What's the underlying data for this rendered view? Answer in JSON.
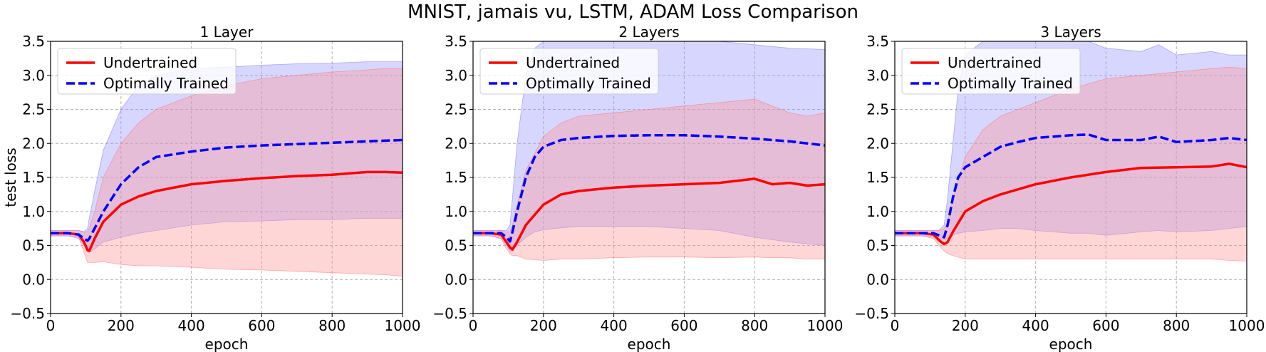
{
  "figure_title": "MNIST, jamais vu, LSTM, ADAM Loss Comparison",
  "colors": {
    "undertrained": "#ff0000",
    "optimal": "#0000ff",
    "undertrained_band": "#ff9999",
    "optimal_band": "#9999ff",
    "grid": "#b0b0b0"
  },
  "chart_data": [
    {
      "type": "line",
      "title": "1 Layer",
      "xlabel": "epoch",
      "ylabel": "test loss",
      "xlim": [
        0,
        1000
      ],
      "ylim": [
        -0.5,
        3.5
      ],
      "xticks": [
        0,
        200,
        400,
        600,
        800,
        1000
      ],
      "yticks": [
        -0.5,
        0.0,
        0.5,
        1.0,
        1.5,
        2.0,
        2.5,
        3.0,
        3.5
      ],
      "grid": true,
      "legend_position": "upper-left",
      "series": [
        {
          "name": "Undertrained",
          "style": "solid",
          "x": [
            0,
            50,
            80,
            95,
            105,
            110,
            125,
            150,
            200,
            250,
            300,
            400,
            500,
            600,
            700,
            800,
            900,
            950,
            1000
          ],
          "mean": [
            0.68,
            0.68,
            0.66,
            0.55,
            0.43,
            0.42,
            0.6,
            0.85,
            1.1,
            1.22,
            1.3,
            1.4,
            1.45,
            1.49,
            1.52,
            1.54,
            1.58,
            1.58,
            1.57
          ],
          "upper": [
            0.72,
            0.72,
            0.72,
            0.7,
            0.7,
            0.75,
            1.0,
            1.5,
            2.0,
            2.3,
            2.5,
            2.7,
            2.85,
            2.95,
            3.0,
            3.05,
            3.08,
            3.1,
            3.1
          ],
          "lower": [
            0.64,
            0.64,
            0.62,
            0.4,
            0.25,
            0.25,
            0.25,
            0.26,
            0.22,
            0.2,
            0.2,
            0.18,
            0.15,
            0.14,
            0.12,
            0.1,
            0.08,
            0.07,
            0.05
          ]
        },
        {
          "name": "Optimally Trained",
          "style": "dashed",
          "x": [
            0,
            50,
            80,
            95,
            105,
            110,
            125,
            150,
            200,
            250,
            300,
            400,
            500,
            600,
            700,
            800,
            900,
            950,
            1000
          ],
          "mean": [
            0.68,
            0.68,
            0.66,
            0.6,
            0.57,
            0.6,
            0.75,
            1.0,
            1.4,
            1.65,
            1.8,
            1.88,
            1.94,
            1.97,
            1.99,
            2.01,
            2.03,
            2.04,
            2.05
          ],
          "upper": [
            0.72,
            0.72,
            0.72,
            0.7,
            0.75,
            0.9,
            1.3,
            1.9,
            2.5,
            2.85,
            3.0,
            3.1,
            3.12,
            3.15,
            3.17,
            3.18,
            3.2,
            3.2,
            3.2
          ],
          "lower": [
            0.64,
            0.64,
            0.6,
            0.5,
            0.45,
            0.4,
            0.45,
            0.55,
            0.62,
            0.68,
            0.72,
            0.8,
            0.85,
            0.86,
            0.88,
            0.88,
            0.9,
            0.9,
            0.9
          ]
        }
      ]
    },
    {
      "type": "line",
      "title": "2 Layers",
      "xlabel": "epoch",
      "ylabel": "",
      "xlim": [
        0,
        1000
      ],
      "ylim": [
        -0.5,
        3.5
      ],
      "xticks": [
        0,
        200,
        400,
        600,
        800,
        1000
      ],
      "yticks": [
        -0.5,
        0.0,
        0.5,
        1.0,
        1.5,
        2.0,
        2.5,
        3.0,
        3.5
      ],
      "grid": true,
      "legend_position": "upper-left",
      "series": [
        {
          "name": "Undertrained",
          "style": "solid",
          "x": [
            0,
            50,
            80,
            95,
            105,
            112,
            125,
            150,
            200,
            250,
            300,
            400,
            500,
            600,
            700,
            800,
            850,
            900,
            950,
            1000
          ],
          "mean": [
            0.68,
            0.68,
            0.66,
            0.55,
            0.47,
            0.44,
            0.55,
            0.8,
            1.1,
            1.25,
            1.3,
            1.35,
            1.38,
            1.4,
            1.42,
            1.48,
            1.4,
            1.42,
            1.38,
            1.4
          ],
          "upper": [
            0.72,
            0.72,
            0.72,
            0.7,
            0.7,
            0.8,
            1.1,
            1.6,
            2.1,
            2.3,
            2.4,
            2.45,
            2.5,
            2.55,
            2.6,
            2.65,
            2.55,
            2.45,
            2.4,
            2.45
          ],
          "lower": [
            0.64,
            0.64,
            0.6,
            0.45,
            0.38,
            0.35,
            0.35,
            0.3,
            0.28,
            0.3,
            0.3,
            0.32,
            0.33,
            0.33,
            0.32,
            0.33,
            0.32,
            0.32,
            0.3,
            0.3
          ]
        },
        {
          "name": "Optimally Trained",
          "style": "dashed",
          "x": [
            0,
            50,
            80,
            95,
            105,
            112,
            125,
            150,
            175,
            200,
            250,
            300,
            400,
            500,
            600,
            700,
            800,
            900,
            1000
          ],
          "mean": [
            0.68,
            0.68,
            0.68,
            0.62,
            0.56,
            0.7,
            1.0,
            1.5,
            1.8,
            1.95,
            2.05,
            2.08,
            2.11,
            2.12,
            2.12,
            2.1,
            2.07,
            2.03,
            1.97
          ],
          "upper": [
            0.72,
            0.72,
            0.72,
            0.72,
            0.8,
            1.2,
            2.0,
            3.0,
            3.4,
            3.5,
            3.5,
            3.5,
            3.5,
            3.5,
            3.5,
            3.5,
            3.45,
            3.4,
            3.38
          ],
          "lower": [
            0.64,
            0.64,
            0.6,
            0.5,
            0.42,
            0.42,
            0.5,
            0.62,
            0.7,
            0.73,
            0.76,
            0.78,
            0.78,
            0.78,
            0.75,
            0.72,
            0.62,
            0.55,
            0.5
          ]
        }
      ]
    },
    {
      "type": "line",
      "title": "3 Layers",
      "xlabel": "epoch",
      "ylabel": "",
      "xlim": [
        0,
        1000
      ],
      "ylim": [
        -0.5,
        3.5
      ],
      "xticks": [
        0,
        200,
        400,
        600,
        800,
        1000
      ],
      "yticks": [
        -0.5,
        0.0,
        0.5,
        1.0,
        1.5,
        2.0,
        2.5,
        3.0,
        3.5
      ],
      "grid": true,
      "legend_position": "upper-left",
      "series": [
        {
          "name": "Undertrained",
          "style": "solid",
          "x": [
            0,
            80,
            110,
            125,
            140,
            150,
            165,
            200,
            250,
            300,
            400,
            500,
            600,
            700,
            800,
            900,
            950,
            1000
          ],
          "mean": [
            0.68,
            0.68,
            0.66,
            0.58,
            0.52,
            0.55,
            0.7,
            1.0,
            1.15,
            1.25,
            1.4,
            1.5,
            1.58,
            1.64,
            1.65,
            1.66,
            1.7,
            1.65
          ],
          "upper": [
            0.72,
            0.72,
            0.72,
            0.72,
            0.75,
            0.85,
            1.2,
            1.8,
            2.2,
            2.4,
            2.6,
            2.8,
            2.95,
            3.0,
            3.05,
            3.1,
            3.12,
            3.1
          ],
          "lower": [
            0.64,
            0.64,
            0.6,
            0.5,
            0.42,
            0.38,
            0.35,
            0.3,
            0.3,
            0.3,
            0.3,
            0.3,
            0.3,
            0.3,
            0.3,
            0.3,
            0.28,
            0.27
          ]
        },
        {
          "name": "Optimally Trained",
          "style": "dashed",
          "x": [
            0,
            80,
            110,
            125,
            140,
            150,
            165,
            180,
            200,
            250,
            300,
            350,
            400,
            450,
            500,
            550,
            600,
            700,
            750,
            800,
            900,
            950,
            1000
          ],
          "mean": [
            0.68,
            0.68,
            0.68,
            0.65,
            0.62,
            0.8,
            1.2,
            1.5,
            1.65,
            1.8,
            1.95,
            2.02,
            2.08,
            2.1,
            2.12,
            2.13,
            2.05,
            2.05,
            2.1,
            2.02,
            2.05,
            2.08,
            2.05
          ],
          "upper": [
            0.72,
            0.72,
            0.72,
            0.72,
            0.8,
            1.2,
            2.0,
            2.8,
            3.3,
            3.5,
            3.5,
            3.5,
            3.5,
            3.5,
            3.5,
            3.5,
            3.4,
            3.35,
            3.45,
            3.3,
            3.35,
            3.3,
            3.3
          ],
          "lower": [
            0.64,
            0.64,
            0.62,
            0.6,
            0.58,
            0.6,
            0.65,
            0.68,
            0.7,
            0.72,
            0.75,
            0.75,
            0.72,
            0.7,
            0.68,
            0.68,
            0.65,
            0.7,
            0.72,
            0.7,
            0.72,
            0.75,
            0.78
          ]
        }
      ]
    }
  ]
}
